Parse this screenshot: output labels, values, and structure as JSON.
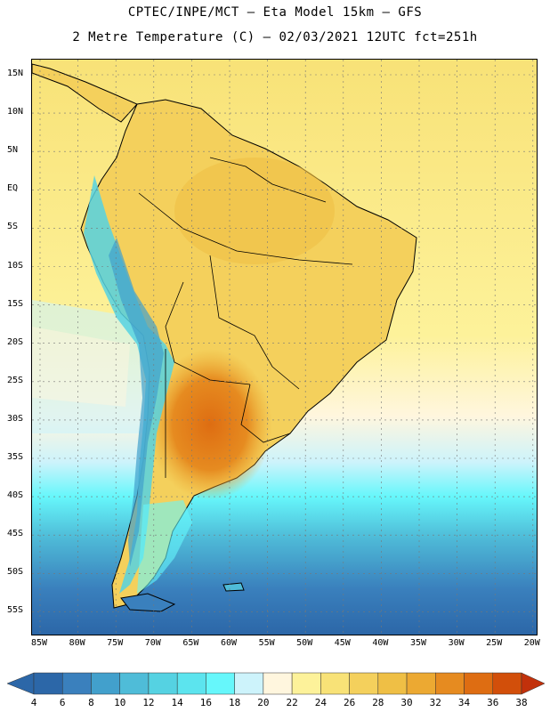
{
  "title_line1": "CPTEC/INPE/MCT –   Eta Model 15km – GFS",
  "title_line2": "2 Metre Temperature (C) – 02/03/2021 12UTC fct=251h",
  "lat_labels": [
    "15N",
    "10N",
    "5N",
    "EQ",
    "5S",
    "10S",
    "15S",
    "20S",
    "25S",
    "30S",
    "35S",
    "40S",
    "45S",
    "50S",
    "55S"
  ],
  "lon_labels": [
    "85W",
    "80W",
    "75W",
    "70W",
    "65W",
    "60W",
    "55W",
    "50W",
    "45W",
    "40W",
    "35W",
    "30W",
    "25W",
    "20W"
  ],
  "colorbar": {
    "labels": [
      "4",
      "6",
      "8",
      "10",
      "12",
      "14",
      "16",
      "18",
      "20",
      "22",
      "24",
      "26",
      "28",
      "30",
      "32",
      "34",
      "36",
      "38"
    ],
    "colors": [
      "#2c67a8",
      "#3a80bd",
      "#42a0cc",
      "#4fbcd8",
      "#55d2e2",
      "#5ce4ee",
      "#66f7fb",
      "#cdf3fb",
      "#fff6de",
      "#fdf29a",
      "#f8e277",
      "#f4d05c",
      "#efbf45",
      "#eca932",
      "#e68b20",
      "#de6d12",
      "#d24f0a",
      "#c2310b"
    ]
  }
}
